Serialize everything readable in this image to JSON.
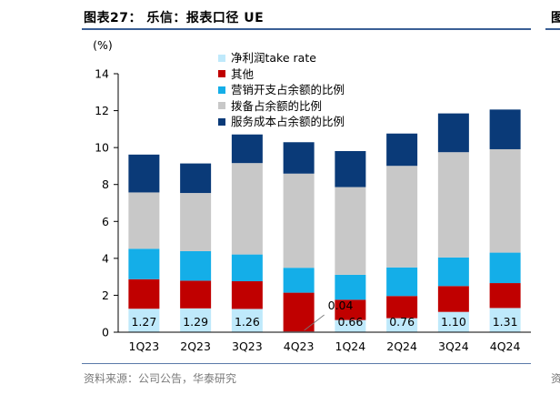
{
  "header": {
    "title": "图表27： 乐信：报表口径 UE",
    "right_cut_glyph": "图",
    "source": "资料来源：公司公告，华泰研究",
    "right_cut_source": "资"
  },
  "colors": {
    "take_rate": "#bfe9fb",
    "other": "#c00000",
    "marketing": "#14aee8",
    "provision": "#c8c8c8",
    "service": "#0a3a78"
  },
  "chart_data": {
    "type": "bar",
    "stacked": true,
    "unit_label": "(%)",
    "ylim": [
      0,
      14
    ],
    "yticks": [
      0,
      2,
      4,
      6,
      8,
      10,
      12,
      14
    ],
    "categories": [
      "1Q23",
      "2Q23",
      "3Q23",
      "4Q23",
      "1Q24",
      "2Q24",
      "3Q24",
      "4Q24"
    ],
    "series": [
      {
        "key": "take_rate",
        "name": "净利润take rate",
        "values": [
          1.27,
          1.29,
          1.26,
          0.04,
          0.66,
          0.76,
          1.1,
          1.31
        ]
      },
      {
        "key": "other",
        "name": "其他",
        "values": [
          1.6,
          1.5,
          1.5,
          2.1,
          1.1,
          1.2,
          1.4,
          1.35
        ]
      },
      {
        "key": "marketing",
        "name": "营销开支占余额的比例",
        "values": [
          1.65,
          1.6,
          1.45,
          1.35,
          1.35,
          1.55,
          1.55,
          1.65
        ]
      },
      {
        "key": "provision",
        "name": "拨备占余额的比例",
        "values": [
          3.05,
          3.15,
          4.95,
          5.1,
          4.75,
          5.5,
          5.7,
          5.6
        ]
      },
      {
        "key": "service",
        "name": "服务成本占余额的比例",
        "values": [
          2.05,
          1.6,
          1.55,
          1.7,
          1.95,
          1.75,
          2.1,
          2.15
        ]
      }
    ],
    "data_labels": [
      "1.27",
      "1.29",
      "1.26",
      "0.04",
      "0.66",
      "0.76",
      "1.10",
      "1.31"
    ]
  }
}
